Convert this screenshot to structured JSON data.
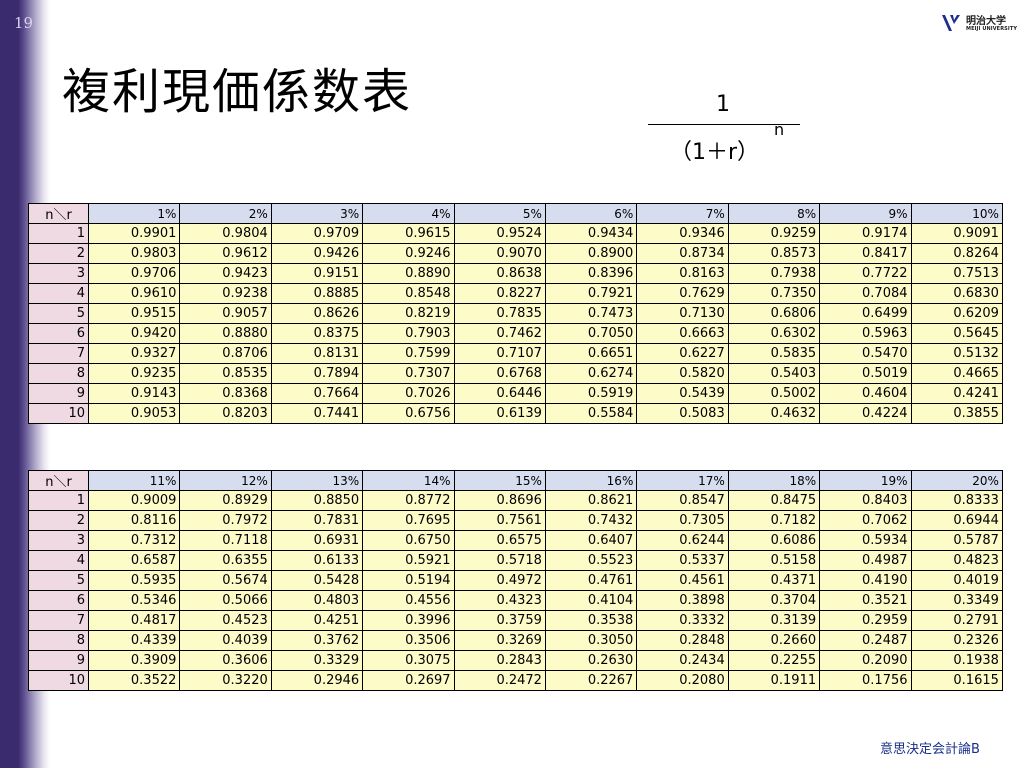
{
  "slide": {
    "number": "19",
    "title": "複利現価係数表",
    "footer": "意思決定会計論B"
  },
  "logo": {
    "name_ja": "明治大学",
    "name_en": "MEIJI UNIVERSITY"
  },
  "formula": {
    "numerator": "1",
    "denominator": "（1＋r）",
    "exponent": "n"
  },
  "tables": [
    {
      "corner": "n＼r",
      "rates": [
        "1%",
        "2%",
        "3%",
        "4%",
        "5%",
        "6%",
        "7%",
        "8%",
        "9%",
        "10%"
      ],
      "rows": [
        {
          "n": "1",
          "values": [
            "0.9901",
            "0.9804",
            "0.9709",
            "0.9615",
            "0.9524",
            "0.9434",
            "0.9346",
            "0.9259",
            "0.9174",
            "0.9091"
          ]
        },
        {
          "n": "2",
          "values": [
            "0.9803",
            "0.9612",
            "0.9426",
            "0.9246",
            "0.9070",
            "0.8900",
            "0.8734",
            "0.8573",
            "0.8417",
            "0.8264"
          ]
        },
        {
          "n": "3",
          "values": [
            "0.9706",
            "0.9423",
            "0.9151",
            "0.8890",
            "0.8638",
            "0.8396",
            "0.8163",
            "0.7938",
            "0.7722",
            "0.7513"
          ]
        },
        {
          "n": "4",
          "values": [
            "0.9610",
            "0.9238",
            "0.8885",
            "0.8548",
            "0.8227",
            "0.7921",
            "0.7629",
            "0.7350",
            "0.7084",
            "0.6830"
          ]
        },
        {
          "n": "5",
          "values": [
            "0.9515",
            "0.9057",
            "0.8626",
            "0.8219",
            "0.7835",
            "0.7473",
            "0.7130",
            "0.6806",
            "0.6499",
            "0.6209"
          ]
        },
        {
          "n": "6",
          "values": [
            "0.9420",
            "0.8880",
            "0.8375",
            "0.7903",
            "0.7462",
            "0.7050",
            "0.6663",
            "0.6302",
            "0.5963",
            "0.5645"
          ]
        },
        {
          "n": "7",
          "values": [
            "0.9327",
            "0.8706",
            "0.8131",
            "0.7599",
            "0.7107",
            "0.6651",
            "0.6227",
            "0.5835",
            "0.5470",
            "0.5132"
          ]
        },
        {
          "n": "8",
          "values": [
            "0.9235",
            "0.8535",
            "0.7894",
            "0.7307",
            "0.6768",
            "0.6274",
            "0.5820",
            "0.5403",
            "0.5019",
            "0.4665"
          ]
        },
        {
          "n": "9",
          "values": [
            "0.9143",
            "0.8368",
            "0.7664",
            "0.7026",
            "0.6446",
            "0.5919",
            "0.5439",
            "0.5002",
            "0.4604",
            "0.4241"
          ]
        },
        {
          "n": "10",
          "values": [
            "0.9053",
            "0.8203",
            "0.7441",
            "0.6756",
            "0.6139",
            "0.5584",
            "0.5083",
            "0.4632",
            "0.4224",
            "0.3855"
          ]
        }
      ]
    },
    {
      "corner": "n＼r",
      "rates": [
        "11%",
        "12%",
        "13%",
        "14%",
        "15%",
        "16%",
        "17%",
        "18%",
        "19%",
        "20%"
      ],
      "rows": [
        {
          "n": "1",
          "values": [
            "0.9009",
            "0.8929",
            "0.8850",
            "0.8772",
            "0.8696",
            "0.8621",
            "0.8547",
            "0.8475",
            "0.8403",
            "0.8333"
          ]
        },
        {
          "n": "2",
          "values": [
            "0.8116",
            "0.7972",
            "0.7831",
            "0.7695",
            "0.7561",
            "0.7432",
            "0.7305",
            "0.7182",
            "0.7062",
            "0.6944"
          ]
        },
        {
          "n": "3",
          "values": [
            "0.7312",
            "0.7118",
            "0.6931",
            "0.6750",
            "0.6575",
            "0.6407",
            "0.6244",
            "0.6086",
            "0.5934",
            "0.5787"
          ]
        },
        {
          "n": "4",
          "values": [
            "0.6587",
            "0.6355",
            "0.6133",
            "0.5921",
            "0.5718",
            "0.5523",
            "0.5337",
            "0.5158",
            "0.4987",
            "0.4823"
          ]
        },
        {
          "n": "5",
          "values": [
            "0.5935",
            "0.5674",
            "0.5428",
            "0.5194",
            "0.4972",
            "0.4761",
            "0.4561",
            "0.4371",
            "0.4190",
            "0.4019"
          ]
        },
        {
          "n": "6",
          "values": [
            "0.5346",
            "0.5066",
            "0.4803",
            "0.4556",
            "0.4323",
            "0.4104",
            "0.3898",
            "0.3704",
            "0.3521",
            "0.3349"
          ]
        },
        {
          "n": "7",
          "values": [
            "0.4817",
            "0.4523",
            "0.4251",
            "0.3996",
            "0.3759",
            "0.3538",
            "0.3332",
            "0.3139",
            "0.2959",
            "0.2791"
          ]
        },
        {
          "n": "8",
          "values": [
            "0.4339",
            "0.4039",
            "0.3762",
            "0.3506",
            "0.3269",
            "0.3050",
            "0.2848",
            "0.2660",
            "0.2487",
            "0.2326"
          ]
        },
        {
          "n": "9",
          "values": [
            "0.3909",
            "0.3606",
            "0.3329",
            "0.3075",
            "0.2843",
            "0.2630",
            "0.2434",
            "0.2255",
            "0.2090",
            "0.1938"
          ]
        },
        {
          "n": "10",
          "values": [
            "0.3522",
            "0.3220",
            "0.2946",
            "0.2697",
            "0.2472",
            "0.2267",
            "0.2080",
            "0.1911",
            "0.1756",
            "0.1615"
          ]
        }
      ]
    }
  ],
  "colors": {
    "band": "#3a2a6e",
    "corner_bg": "#efd9e2",
    "rate_header_bg": "#d6ddef",
    "value_bg": "#fdfbc8",
    "footer_text": "#1a2f8a"
  }
}
